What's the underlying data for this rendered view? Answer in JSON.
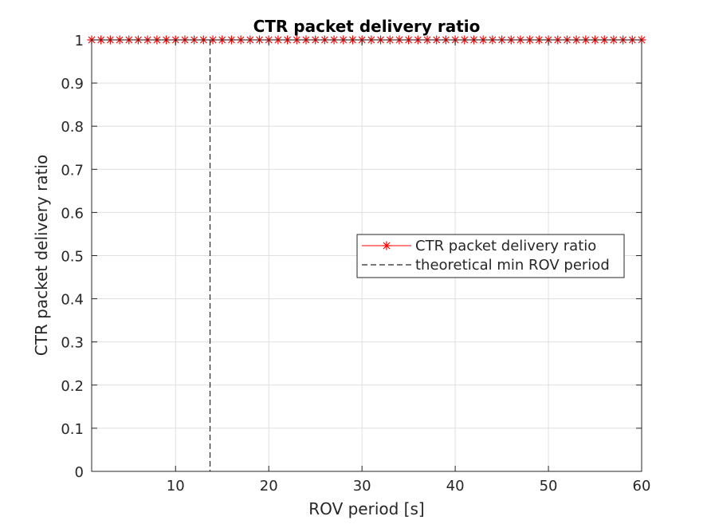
{
  "chart_data": {
    "type": "line",
    "title": "CTR packet delivery ratio",
    "xlabel": "ROV period [s]",
    "ylabel": "CTR packet delivery ratio",
    "xlim": [
      1,
      60
    ],
    "ylim": [
      0,
      1
    ],
    "xticks": [
      10,
      20,
      30,
      40,
      50,
      60
    ],
    "yticks": [
      0,
      0.1,
      0.2,
      0.3,
      0.4,
      0.5,
      0.6,
      0.7,
      0.8,
      0.9,
      1
    ],
    "grid": true,
    "legend_position": "center-right",
    "series": [
      {
        "name": "CTR packet delivery ratio",
        "color": "#ff0000",
        "marker": "asterisk",
        "x": [
          1,
          2,
          3,
          4,
          5,
          6,
          7,
          8,
          9,
          10,
          11,
          12,
          13,
          14,
          15,
          16,
          17,
          18,
          19,
          20,
          21,
          22,
          23,
          24,
          25,
          26,
          27,
          28,
          29,
          30,
          31,
          32,
          33,
          34,
          35,
          36,
          37,
          38,
          39,
          40,
          41,
          42,
          43,
          44,
          45,
          46,
          47,
          48,
          49,
          50,
          51,
          52,
          53,
          54,
          55,
          56,
          57,
          58,
          59,
          60
        ],
        "y": [
          1,
          1,
          1,
          1,
          1,
          1,
          1,
          1,
          1,
          1,
          1,
          1,
          1,
          1,
          1,
          1,
          1,
          1,
          1,
          1,
          1,
          1,
          1,
          1,
          1,
          1,
          1,
          1,
          1,
          1,
          1,
          1,
          1,
          1,
          1,
          1,
          1,
          1,
          1,
          1,
          1,
          1,
          1,
          1,
          1,
          1,
          1,
          1,
          1,
          1,
          1,
          1,
          1,
          1,
          1,
          1,
          1,
          1,
          1,
          1
        ]
      },
      {
        "name": "theoretical min ROV period",
        "color": "#262626",
        "style": "dashed",
        "vertical_x": 13.7
      }
    ]
  }
}
